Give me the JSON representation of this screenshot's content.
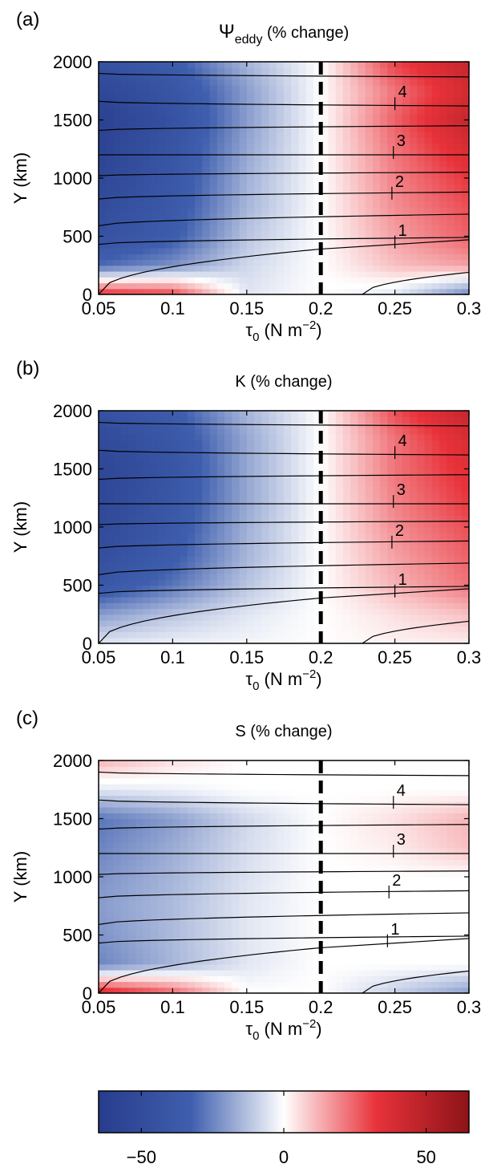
{
  "colors": {
    "negative_dark": "#283c8c",
    "negative_mid": "#3f5fae",
    "neutral": "#ffffff",
    "positive_mid": "#e8323a",
    "positive_dark": "#8c1418",
    "contour_line": "#000000",
    "dashed_line": "#000000"
  },
  "colorbar": {
    "range": [
      -65,
      65
    ],
    "tick_values": [
      -50,
      0,
      50
    ],
    "tick_labels": [
      "−50",
      "0",
      "50"
    ]
  },
  "chart_data": [
    {
      "type": "heatmap",
      "panel_label": "(a)",
      "title": "Ψ",
      "title_sub": "eddy",
      "title_rest": " (% change)",
      "xlabel_sym": "τ",
      "xlabel_sub": "0",
      "xlabel_rest": " (N m",
      "xlabel_sup": "−2",
      "xlabel_end": ")",
      "ylabel": "Y (km)",
      "xlim": [
        0.05,
        0.3
      ],
      "ylim": [
        0,
        2000
      ],
      "xticks": [
        0.05,
        0.1,
        0.15,
        0.2,
        0.25,
        0.3
      ],
      "xtick_labels": [
        "0.05",
        "0.1",
        "0.15",
        "0.2",
        "0.25",
        "0.3"
      ],
      "yticks": [
        0,
        500,
        1000,
        1500,
        2000
      ],
      "ytick_labels": [
        "0",
        "500",
        "1000",
        "1500",
        "2000"
      ],
      "reference_x": 0.2,
      "x": [
        0.05,
        0.1,
        0.15,
        0.2,
        0.25,
        0.3
      ],
      "y": [
        0,
        250,
        500,
        750,
        1000,
        1250,
        1500,
        1750,
        2000
      ],
      "z": [
        [
          35,
          30,
          -5,
          0,
          -5,
          -25
        ],
        [
          -30,
          -22,
          -8,
          0,
          10,
          15
        ],
        [
          -45,
          -35,
          -12,
          0,
          15,
          25
        ],
        [
          -50,
          -38,
          -15,
          0,
          18,
          28
        ],
        [
          -55,
          -40,
          -16,
          0,
          20,
          32
        ],
        [
          -58,
          -42,
          -18,
          0,
          22,
          38
        ],
        [
          -60,
          -45,
          -20,
          0,
          25,
          45
        ],
        [
          -55,
          -42,
          -20,
          0,
          22,
          40
        ],
        [
          -45,
          -35,
          -15,
          0,
          30,
          45
        ]
      ],
      "contour_labels": [
        "1",
        "2",
        "3",
        "4"
      ]
    },
    {
      "type": "heatmap",
      "panel_label": "(b)",
      "title": "K (% change)",
      "title_sub": "",
      "title_rest": "",
      "xlabel_sym": "τ",
      "xlabel_sub": "0",
      "xlabel_rest": " (N m",
      "xlabel_sup": "−2",
      "xlabel_end": ")",
      "ylabel": "Y (km)",
      "xlim": [
        0.05,
        0.3
      ],
      "ylim": [
        0,
        2000
      ],
      "xticks": [
        0.05,
        0.1,
        0.15,
        0.2,
        0.25,
        0.3
      ],
      "xtick_labels": [
        "0.05",
        "0.1",
        "0.15",
        "0.2",
        "0.25",
        "0.3"
      ],
      "yticks": [
        0,
        500,
        1000,
        1500,
        2000
      ],
      "ytick_labels": [
        "0",
        "500",
        "1000",
        "1500",
        "2000"
      ],
      "reference_x": 0.2,
      "x": [
        0.05,
        0.1,
        0.15,
        0.2,
        0.25,
        0.3
      ],
      "y": [
        0,
        250,
        500,
        750,
        1000,
        1250,
        1500,
        1750,
        2000
      ],
      "z": [
        [
          -5,
          -3,
          -2,
          0,
          2,
          3
        ],
        [
          -20,
          -12,
          -5,
          0,
          5,
          10
        ],
        [
          -40,
          -28,
          -12,
          0,
          12,
          22
        ],
        [
          -48,
          -35,
          -15,
          0,
          15,
          25
        ],
        [
          -52,
          -38,
          -16,
          0,
          18,
          28
        ],
        [
          -55,
          -40,
          -18,
          0,
          20,
          32
        ],
        [
          -56,
          -42,
          -18,
          0,
          22,
          35
        ],
        [
          -52,
          -40,
          -18,
          0,
          22,
          38
        ],
        [
          -45,
          -35,
          -15,
          0,
          28,
          45
        ]
      ],
      "contour_labels": [
        "1",
        "2",
        "3",
        "4"
      ]
    },
    {
      "type": "heatmap",
      "panel_label": "(c)",
      "title": "S (% change)",
      "title_sub": "",
      "title_rest": "",
      "xlabel_sym": "τ",
      "xlabel_sub": "0",
      "xlabel_rest": " (N m",
      "xlabel_sup": "−2",
      "xlabel_end": ")",
      "ylabel": "Y (km)",
      "xlim": [
        0.05,
        0.3
      ],
      "ylim": [
        0,
        2000
      ],
      "xticks": [
        0.05,
        0.1,
        0.15,
        0.2,
        0.25,
        0.3
      ],
      "xtick_labels": [
        "0.05",
        "0.1",
        "0.15",
        "0.2",
        "0.25",
        "0.3"
      ],
      "yticks": [
        0,
        500,
        1000,
        1500,
        2000
      ],
      "ytick_labels": [
        "0",
        "500",
        "1000",
        "1500",
        "2000"
      ],
      "reference_x": 0.2,
      "x": [
        0.05,
        0.1,
        0.15,
        0.2,
        0.25,
        0.3
      ],
      "y": [
        0,
        250,
        500,
        750,
        1000,
        1250,
        1500,
        1750,
        2000
      ],
      "z": [
        [
          40,
          25,
          0,
          0,
          -10,
          -20
        ],
        [
          -25,
          -15,
          -5,
          0,
          0,
          0
        ],
        [
          -22,
          -14,
          -5,
          0,
          0,
          0
        ],
        [
          -20,
          -14,
          -5,
          0,
          0,
          0
        ],
        [
          -22,
          -15,
          -6,
          0,
          0,
          0
        ],
        [
          -25,
          -17,
          -7,
          0,
          3,
          10
        ],
        [
          -28,
          -20,
          -8,
          0,
          5,
          12
        ],
        [
          -5,
          -3,
          0,
          0,
          0,
          0
        ],
        [
          12,
          5,
          0,
          0,
          0,
          0
        ]
      ],
      "contour_labels": [
        "1",
        "2",
        "3",
        "4"
      ]
    }
  ]
}
